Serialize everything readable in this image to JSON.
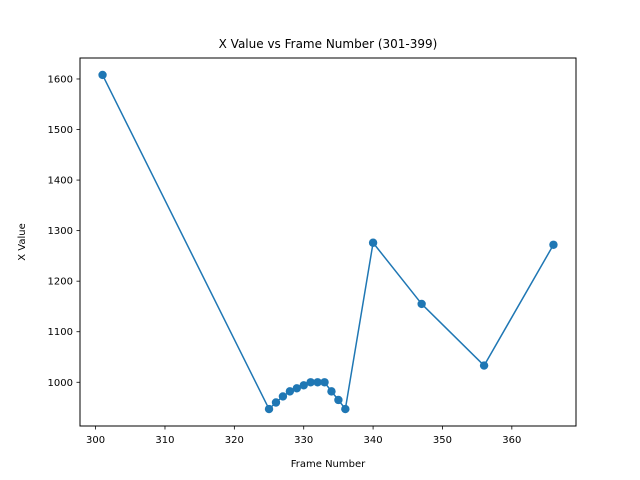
{
  "chart_data": {
    "type": "line",
    "title": "X Value vs Frame Number (301-399)",
    "xlabel": "Frame Number",
    "ylabel": "X Value",
    "xlim": [
      297.75,
      369.25
    ],
    "ylim": [
      913.5,
      1641.5
    ],
    "xticks": [
      300,
      310,
      320,
      330,
      340,
      350,
      360
    ],
    "yticks": [
      1000,
      1100,
      1200,
      1300,
      1400,
      1500,
      1600
    ],
    "grid": false,
    "marker": "circle",
    "series": [
      {
        "color": "#1f77b4",
        "points": [
          {
            "x": 301,
            "y": 1608
          },
          {
            "x": 325,
            "y": 947
          },
          {
            "x": 326,
            "y": 960
          },
          {
            "x": 327,
            "y": 972
          },
          {
            "x": 328,
            "y": 982
          },
          {
            "x": 329,
            "y": 988
          },
          {
            "x": 330,
            "y": 994
          },
          {
            "x": 331,
            "y": 1000
          },
          {
            "x": 332,
            "y": 1000
          },
          {
            "x": 333,
            "y": 1000
          },
          {
            "x": 334,
            "y": 982
          },
          {
            "x": 335,
            "y": 965
          },
          {
            "x": 336,
            "y": 947
          },
          {
            "x": 340,
            "y": 1276
          },
          {
            "x": 347,
            "y": 1155
          },
          {
            "x": 356,
            "y": 1033
          },
          {
            "x": 366,
            "y": 1272
          }
        ]
      }
    ]
  }
}
